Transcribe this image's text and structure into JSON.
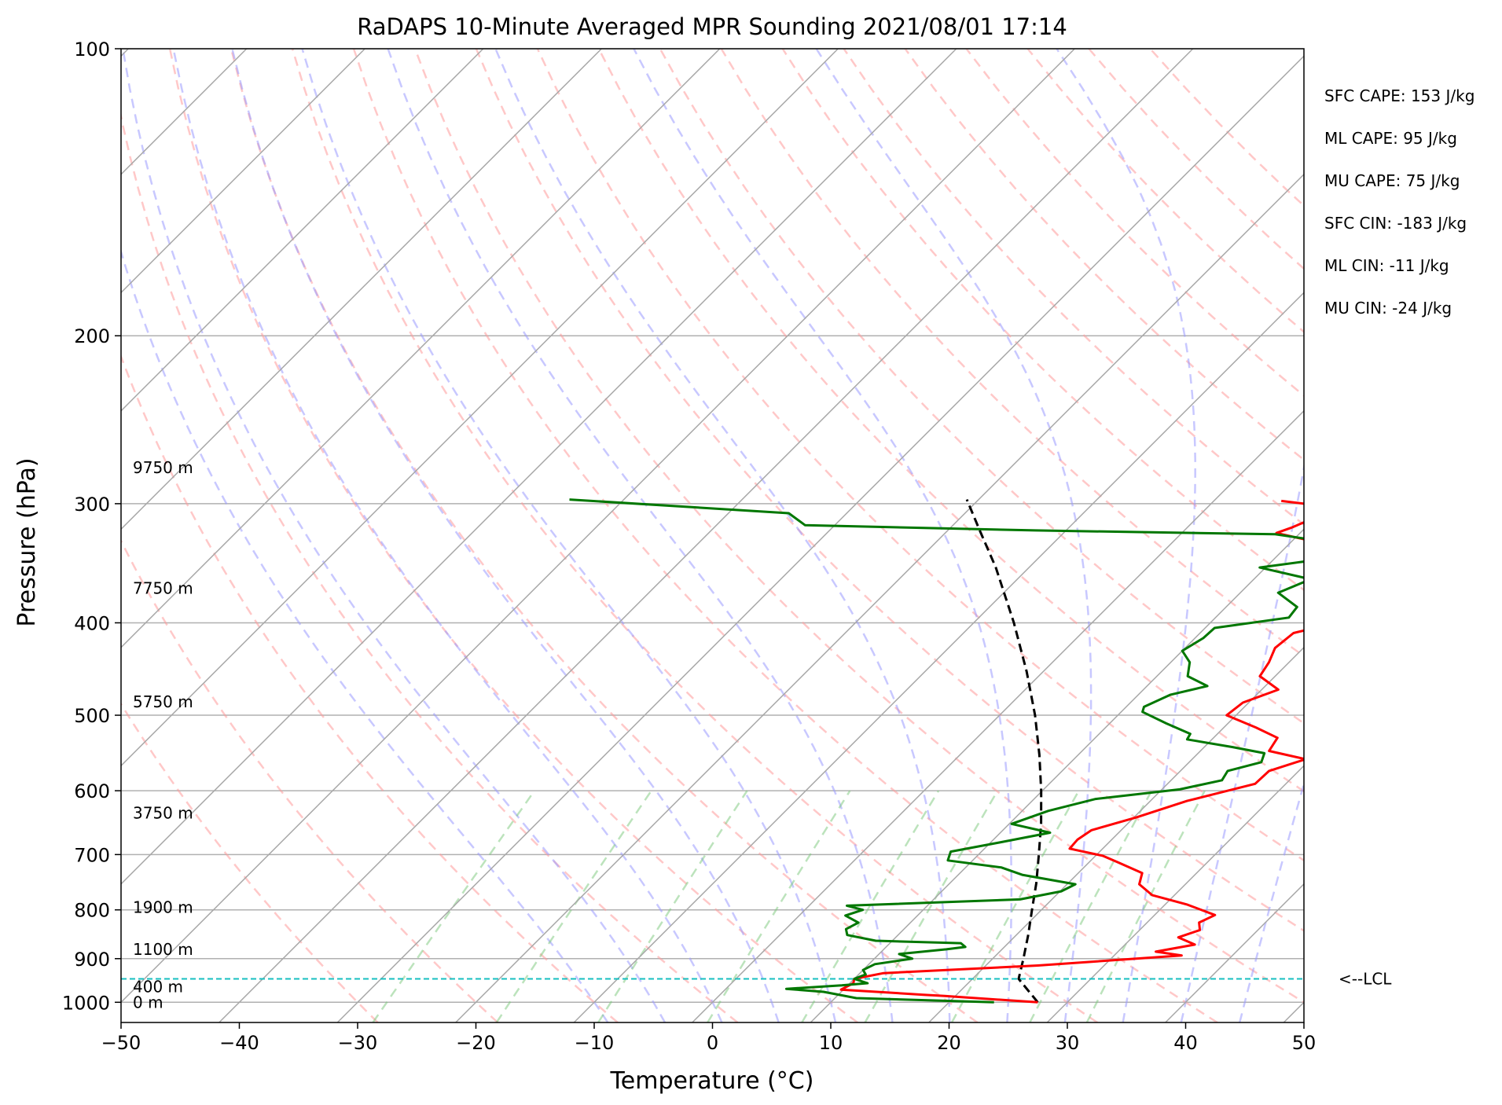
{
  "chart_data": {
    "type": "line",
    "title": "RaDAPS 10-Minute Averaged MPR Sounding 2021/08/01 17:14",
    "xlabel": "Temperature (°C)",
    "ylabel": "Pressure (hPa)",
    "xlim": [
      -50,
      50
    ],
    "ylim": [
      1050,
      100
    ],
    "y_scale": "log",
    "skew": true,
    "x_ticks": [
      "−50",
      "−40",
      "−30",
      "−20",
      "−10",
      "0",
      "10",
      "20",
      "30",
      "40",
      "50"
    ],
    "y_ticks": [
      "100",
      "200",
      "300",
      "400",
      "500",
      "600",
      "700",
      "800",
      "900",
      "1000"
    ],
    "grid": true,
    "indices": [
      "SFC CAPE: 153 J/kg",
      "ML CAPE: 95 J/kg",
      "MU CAPE: 75 J/kg",
      "SFC CIN: -183 J/kg",
      "ML CIN: -11 J/kg",
      "MU CIN: -24 J/kg"
    ],
    "height_labels": [
      {
        "text": "9750 m",
        "pressure": 275
      },
      {
        "text": "7750 m",
        "pressure": 368
      },
      {
        "text": "5750 m",
        "pressure": 484
      },
      {
        "text": "3750 m",
        "pressure": 633
      },
      {
        "text": "1900 m",
        "pressure": 795
      },
      {
        "text": "1100 m",
        "pressure": 880
      },
      {
        "text": "400 m",
        "pressure": 963
      },
      {
        "text": "0 m",
        "pressure": 1000
      }
    ],
    "lcl": {
      "pressure": 945,
      "label": "<--LCL"
    },
    "series": [
      {
        "color": "#ff0000",
        "values": [
          {
            "p": 1000,
            "t": 27.5
          },
          {
            "p": 985,
            "t": 19.1
          },
          {
            "p": 982,
            "t": 17.2
          },
          {
            "p": 970,
            "t": 9.8
          },
          {
            "p": 955,
            "t": 10.3
          },
          {
            "p": 945,
            "t": 10.0
          },
          {
            "p": 932,
            "t": 12.0
          },
          {
            "p": 915,
            "t": 24.4
          },
          {
            "p": 893,
            "t": 35.7
          },
          {
            "p": 885,
            "t": 33.2
          },
          {
            "p": 870,
            "t": 35.9
          },
          {
            "p": 855,
            "t": 33.9
          },
          {
            "p": 840,
            "t": 35.1
          },
          {
            "p": 825,
            "t": 34.4
          },
          {
            "p": 810,
            "t": 35.1
          },
          {
            "p": 790,
            "t": 31.9
          },
          {
            "p": 772,
            "t": 28.1
          },
          {
            "p": 752,
            "t": 26.1
          },
          {
            "p": 732,
            "t": 25.4
          },
          {
            "p": 713,
            "t": 22.4
          },
          {
            "p": 702,
            "t": 20.6
          },
          {
            "p": 690,
            "t": 17.2
          },
          {
            "p": 675,
            "t": 17.1
          },
          {
            "p": 660,
            "t": 17.5
          },
          {
            "p": 640,
            "t": 20.2
          },
          {
            "p": 615,
            "t": 23.1
          },
          {
            "p": 590,
            "t": 27.4
          },
          {
            "p": 572,
            "t": 27.5
          },
          {
            "p": 556,
            "t": 29.6
          },
          {
            "p": 545,
            "t": 25.8
          },
          {
            "p": 528,
            "t": 25.4
          },
          {
            "p": 515,
            "t": 22.7
          },
          {
            "p": 500,
            "t": 19.2
          },
          {
            "p": 485,
            "t": 19.5
          },
          {
            "p": 470,
            "t": 21.4
          },
          {
            "p": 455,
            "t": 18.7
          },
          {
            "p": 440,
            "t": 18.3
          },
          {
            "p": 425,
            "t": 17.6
          },
          {
            "p": 410,
            "t": 17.9
          },
          {
            "p": 400,
            "t": 20.6
          },
          {
            "p": 385,
            "t": 20.0
          },
          {
            "p": 370,
            "t": 17.2
          },
          {
            "p": 360,
            "t": 18.5
          },
          {
            "p": 350,
            "t": 13.7
          },
          {
            "p": 340,
            "t": 17.9
          },
          {
            "p": 332,
            "t": 13.8
          },
          {
            "p": 322,
            "t": 8.0
          },
          {
            "p": 318,
            "t": 8.8
          },
          {
            "p": 312,
            "t": 9.7
          },
          {
            "p": 305,
            "t": 13.3
          },
          {
            "p": 298,
            "t": 5.7
          }
        ]
      },
      {
        "color": "#007700",
        "values": [
          {
            "p": 1000,
            "t": 23.8
          },
          {
            "p": 990,
            "t": 11.8
          },
          {
            "p": 980,
            "t": 9.6
          },
          {
            "p": 975,
            "t": 8.5
          },
          {
            "p": 968,
            "t": 5.1
          },
          {
            "p": 960,
            "t": 9.5
          },
          {
            "p": 955,
            "t": 11.5
          },
          {
            "p": 945,
            "t": 10.0
          },
          {
            "p": 935,
            "t": 10.6
          },
          {
            "p": 925,
            "t": 10.0
          },
          {
            "p": 912,
            "t": 10.5
          },
          {
            "p": 900,
            "t": 13.2
          },
          {
            "p": 890,
            "t": 11.7
          },
          {
            "p": 880,
            "t": 15.3
          },
          {
            "p": 875,
            "t": 16.7
          },
          {
            "p": 867,
            "t": 16.0
          },
          {
            "p": 862,
            "t": 8.6
          },
          {
            "p": 850,
            "t": 5.7
          },
          {
            "p": 838,
            "t": 5.1
          },
          {
            "p": 825,
            "t": 5.6
          },
          {
            "p": 811,
            "t": 3.9
          },
          {
            "p": 800,
            "t": 4.9
          },
          {
            "p": 792,
            "t": 3.2
          },
          {
            "p": 780,
            "t": 17.3
          },
          {
            "p": 765,
            "t": 20.1
          },
          {
            "p": 752,
            "t": 20.7
          },
          {
            "p": 735,
            "t": 15.4
          },
          {
            "p": 722,
            "t": 13.0
          },
          {
            "p": 710,
            "t": 7.9
          },
          {
            "p": 695,
            "t": 7.4
          },
          {
            "p": 680,
            "t": 10.7
          },
          {
            "p": 664,
            "t": 14.2
          },
          {
            "p": 650,
            "t": 10.2
          },
          {
            "p": 630,
            "t": 12.2
          },
          {
            "p": 612,
            "t": 15.2
          },
          {
            "p": 598,
            "t": 21.5
          },
          {
            "p": 585,
            "t": 24.3
          },
          {
            "p": 572,
            "t": 24.0
          },
          {
            "p": 560,
            "t": 26.1
          },
          {
            "p": 548,
            "t": 25.6
          },
          {
            "p": 540,
            "t": 22.4
          },
          {
            "p": 530,
            "t": 17.9
          },
          {
            "p": 523,
            "t": 17.7
          },
          {
            "p": 510,
            "t": 14.8
          },
          {
            "p": 496,
            "t": 11.8
          },
          {
            "p": 490,
            "t": 11.5
          },
          {
            "p": 476,
            "t": 12.7
          },
          {
            "p": 466,
            "t": 15.1
          },
          {
            "p": 455,
            "t": 12.6
          },
          {
            "p": 440,
            "t": 11.6
          },
          {
            "p": 428,
            "t": 10.0
          },
          {
            "p": 415,
            "t": 10.7
          },
          {
            "p": 405,
            "t": 10.8
          },
          {
            "p": 395,
            "t": 16.2
          },
          {
            "p": 385,
            "t": 16.0
          },
          {
            "p": 372,
            "t": 13.2
          },
          {
            "p": 360,
            "t": 14.8
          },
          {
            "p": 350,
            "t": 9.5
          },
          {
            "p": 338,
            "t": 17.4
          },
          {
            "p": 330,
            "t": 13.9
          },
          {
            "p": 323,
            "t": 8.0
          },
          {
            "p": 320,
            "t": -12.6
          },
          {
            "p": 316,
            "t": -32.5
          },
          {
            "p": 307,
            "t": -34.9
          },
          {
            "p": 297,
            "t": -54.6
          }
        ]
      }
    ],
    "parcel_path": {
      "color": "#000000",
      "values": [
        {
          "p": 1000,
          "t": 27.5
        },
        {
          "p": 945,
          "t": 23.9
        },
        {
          "p": 900,
          "t": 22.6
        },
        {
          "p": 850,
          "t": 21.0
        },
        {
          "p": 800,
          "t": 19.2
        },
        {
          "p": 750,
          "t": 17.3
        },
        {
          "p": 700,
          "t": 15.1
        },
        {
          "p": 650,
          "t": 12.7
        },
        {
          "p": 600,
          "t": 9.9
        },
        {
          "p": 550,
          "t": 6.7
        },
        {
          "p": 500,
          "t": 3.0
        },
        {
          "p": 450,
          "t": -1.4
        },
        {
          "p": 400,
          "t": -6.6
        },
        {
          "p": 350,
          "t": -12.8
        },
        {
          "p": 320,
          "t": -17.3
        },
        {
          "p": 297,
          "t": -21.0
        }
      ]
    },
    "background_lines": {
      "isotherm_start_temps": [
        -160,
        -150,
        -140,
        -130,
        -120,
        -110,
        -100,
        -90,
        -80,
        -70,
        -60,
        -50,
        -40,
        -30,
        -20,
        -10,
        0,
        10,
        20,
        30,
        40,
        50
      ],
      "dry_adiabat_start_temps": [
        -30,
        -20,
        -10,
        0,
        10,
        20,
        30,
        40,
        50,
        60,
        70,
        80,
        90,
        100,
        110,
        120,
        130,
        140,
        150,
        160,
        170
      ],
      "moist_adiabat_start_temps": [
        -10,
        -5,
        0,
        5,
        10,
        15,
        20,
        25,
        30,
        35,
        40,
        45
      ],
      "mixing_ratio_g_kg": [
        0.4,
        1,
        2,
        4,
        7,
        10,
        16,
        24,
        32
      ]
    }
  }
}
